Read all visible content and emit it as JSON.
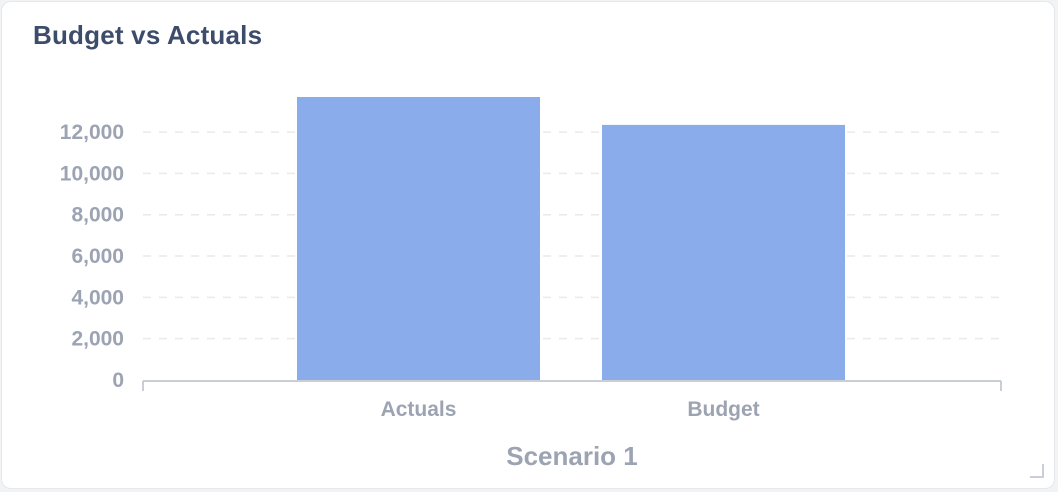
{
  "card": {
    "title": "Budget vs Actuals"
  },
  "chart_data": {
    "type": "bar",
    "title": "Budget vs Actuals",
    "xlabel": "Scenario 1",
    "ylabel": "",
    "categories": [
      "Actuals",
      "Budget"
    ],
    "values": [
      13700,
      12350
    ],
    "ylim": [
      0,
      13700
    ],
    "yticks": [
      0,
      2000,
      4000,
      6000,
      8000,
      10000,
      12000
    ],
    "ytick_labels": [
      "0",
      "2,000",
      "4,000",
      "6,000",
      "8,000",
      "10,000",
      "12,000"
    ],
    "grid": true,
    "legend": "none",
    "bar_color": "#8aaceb"
  }
}
